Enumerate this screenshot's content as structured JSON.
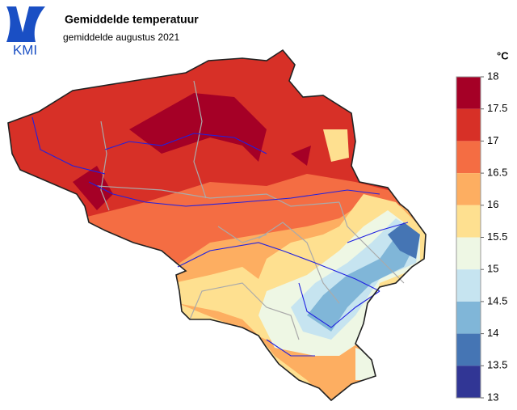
{
  "header": {
    "logo": "KMI",
    "title": "Gemiddelde temperatuur",
    "subtitle": "gemiddelde augustus 2021"
  },
  "legend": {
    "unit": "°C",
    "ticks": [
      18,
      17.5,
      17,
      16.5,
      16,
      15.5,
      15,
      14.5,
      14,
      13.5,
      13
    ],
    "colors": [
      "#a50026",
      "#d73027",
      "#f46d43",
      "#fdae61",
      "#fee090",
      "#eef7e4",
      "#c6e4f0",
      "#80b6d8",
      "#4575b4",
      "#313695"
    ]
  }
}
